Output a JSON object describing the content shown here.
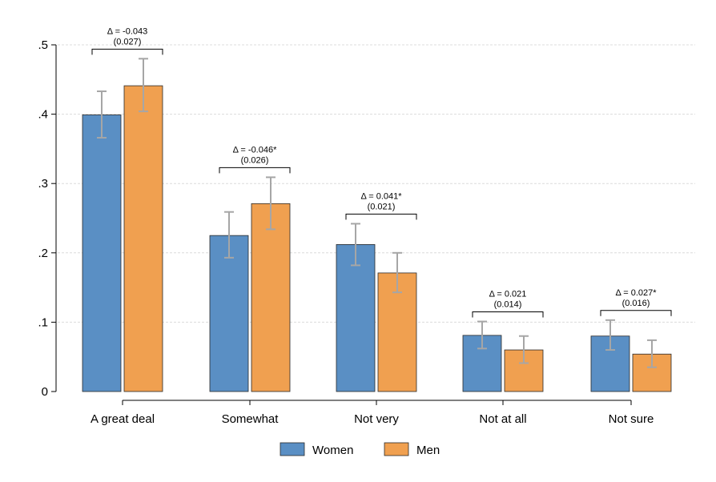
{
  "chart_data": {
    "type": "bar",
    "categories": [
      "A great deal",
      "Somewhat",
      "Not very",
      "Not at all",
      "Not sure"
    ],
    "series": [
      {
        "name": "Women",
        "color": "#5a8fc4",
        "values": [
          0.399,
          0.225,
          0.212,
          0.081,
          0.08
        ],
        "ci_low": [
          0.366,
          0.193,
          0.182,
          0.062,
          0.06
        ],
        "ci_high": [
          0.433,
          0.259,
          0.242,
          0.101,
          0.103
        ]
      },
      {
        "name": "Men",
        "color": "#f0a050",
        "values": [
          0.441,
          0.271,
          0.171,
          0.06,
          0.054
        ],
        "ci_low": [
          0.404,
          0.234,
          0.143,
          0.041,
          0.035
        ],
        "ci_high": [
          0.48,
          0.309,
          0.2,
          0.08,
          0.074
        ]
      }
    ],
    "annotations": [
      {
        "line1": "Δ = -0.043",
        "line2": "(0.027)"
      },
      {
        "line1": "Δ = -0.046*",
        "line2": "(0.026)"
      },
      {
        "line1": "Δ = 0.041*",
        "line2": "(0.021)"
      },
      {
        "line1": "Δ = 0.021",
        "line2": "(0.014)"
      },
      {
        "line1": "Δ = 0.027*",
        "line2": "(0.016)"
      }
    ],
    "ylim": [
      0,
      0.5
    ],
    "yticks": [
      0,
      0.1,
      0.2,
      0.3,
      0.4,
      0.5
    ],
    "ytick_labels": [
      "0",
      ".1",
      ".2",
      ".3",
      ".4",
      ".5"
    ],
    "grid": true,
    "legend_position": "bottom",
    "error_bar_color": "#a6a6a6",
    "grid_color": "#dcdcdc"
  }
}
